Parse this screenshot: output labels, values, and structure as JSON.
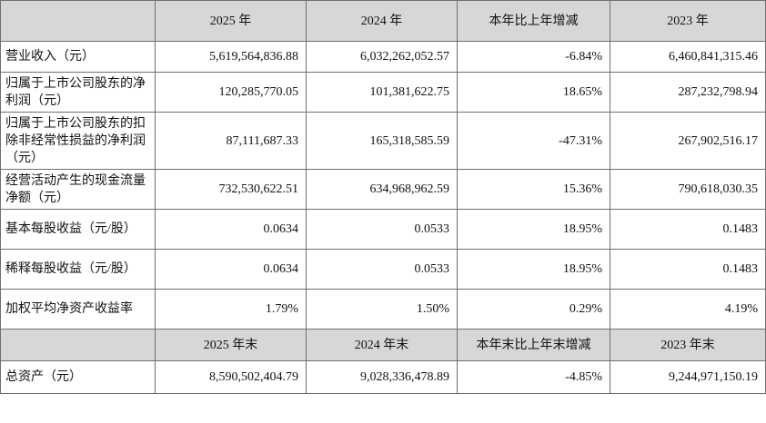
{
  "header": {
    "c0": "",
    "c1": "2025 年",
    "c2": "2024 年",
    "c3": "本年比上年增减",
    "c4": "2023 年"
  },
  "rows": [
    {
      "label": "营业收入（元）",
      "v2025": "5,619,564,836.88",
      "v2024": "6,032,262,052.57",
      "change": "-6.84%",
      "v2023": "6,460,841,315.46"
    },
    {
      "label": "归属于上市公司股东的净利润（元）",
      "v2025": "120,285,770.05",
      "v2024": "101,381,622.75",
      "change": "18.65%",
      "v2023": "287,232,798.94"
    },
    {
      "label": "归属于上市公司股东的扣除非经常性损益的净利润（元）",
      "v2025": "87,111,687.33",
      "v2024": "165,318,585.59",
      "change": "-47.31%",
      "v2023": "267,902,516.17"
    },
    {
      "label": "经营活动产生的现金流量净额（元）",
      "v2025": "732,530,622.51",
      "v2024": "634,968,962.59",
      "change": "15.36%",
      "v2023": "790,618,030.35"
    },
    {
      "label": "基本每股收益（元/股）",
      "v2025": "0.0634",
      "v2024": "0.0533",
      "change": "18.95%",
      "v2023": "0.1483"
    },
    {
      "label": "稀释每股收益（元/股）",
      "v2025": "0.0634",
      "v2024": "0.0533",
      "change": "18.95%",
      "v2023": "0.1483"
    },
    {
      "label": "加权平均净资产收益率",
      "v2025": "1.79%",
      "v2024": "1.50%",
      "change": "0.29%",
      "v2023": "4.19%"
    }
  ],
  "header2": {
    "c0": "",
    "c1": "2025 年末",
    "c2": "2024 年末",
    "c3": "本年末比上年末增减",
    "c4": "2023 年末"
  },
  "rows2": [
    {
      "label": "总资产（元）",
      "v2025": "8,590,502,404.79",
      "v2024": "9,028,336,478.89",
      "change": "-4.85%",
      "v2023": "9,244,971,150.19"
    }
  ]
}
